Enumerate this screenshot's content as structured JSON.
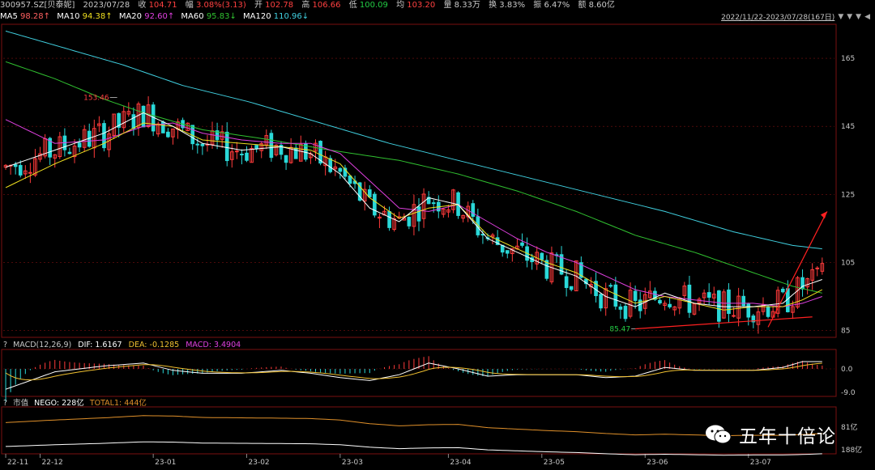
{
  "header": {
    "code": "300957.SZ[贝泰妮]",
    "date": "2023/07/28",
    "close_label": "收",
    "close": "104.71",
    "change_label": "幅",
    "change": "3.08%(3.13)",
    "open_label": "开",
    "open": "102.78",
    "high_label": "高",
    "high": "106.66",
    "low_label": "低",
    "low": "100.09",
    "avg_label": "均",
    "avg": "103.20",
    "volume_label": "量",
    "volume": "8.33万",
    "turnover_label": "换",
    "turnover": "3.83%",
    "amplitude_label": "振",
    "amplitude": "6.47%",
    "amount_label": "额",
    "amount": "8.60亿",
    "date_range": "2022/11/22-2023/07/28(167日)",
    "nav_left": "◀",
    "nav_right": "▼"
  },
  "ma_legend": {
    "ma5_label": "MA5",
    "ma5": "98.28↑",
    "ma10_label": "MA10",
    "ma10": "94.38↑",
    "ma20_label": "MA20",
    "ma20": "92.60↑",
    "ma60_label": "MA60",
    "ma60": "95.83↓",
    "ma120_label": "MA120",
    "ma120": "110.96↓"
  },
  "macd_legend": {
    "q": "?",
    "name": "MACD(12,26,9)",
    "dif_label": "DIF:",
    "dif": "1.6167",
    "dea_label": "DEA:",
    "dea": "-0.1285",
    "macd_label": "MACD:",
    "macd": "3.4904"
  },
  "nego_legend": {
    "q": "?",
    "name": "市值",
    "nego_label": "NEGO:",
    "nego": "228亿",
    "total_label": "TOTAL1:",
    "total": "444亿"
  },
  "colors": {
    "up": "#ff3b3b",
    "down": "#2ad8d8",
    "ma5": "#ffffff",
    "ma10": "#f0e020",
    "ma20": "#e040e0",
    "ma60": "#30c030",
    "ma120": "#40d0e0",
    "grid": "#7a1010",
    "total": "#e0902a",
    "nego": "#ffffff"
  },
  "chart_data": {
    "type": "candlestick",
    "y_ticks": [
      "165",
      "145",
      "125",
      "105",
      "85"
    ],
    "y_range": [
      83,
      175
    ],
    "macd_ticks": [
      "0.0",
      "-9.0"
    ],
    "nego_ticks": [
      "81亿",
      "188亿"
    ],
    "x_labels": [
      "22-11",
      "22-12",
      "23-01",
      "23-02",
      "23-03",
      "23-04",
      "23-05",
      "23-06",
      "23-07"
    ],
    "x_label_positions": [
      0,
      7,
      30,
      49,
      68,
      90,
      109,
      130,
      151
    ],
    "annotations": [
      {
        "text": "153.46",
        "index": 22,
        "value": 153.46,
        "type": "max"
      },
      {
        "text": "85.47",
        "index": 128,
        "value": 85.47,
        "type": "min"
      }
    ],
    "candle_count": 167,
    "ma5": [
      [
        0,
        133
      ],
      [
        10,
        138
      ],
      [
        20,
        143
      ],
      [
        28,
        149
      ],
      [
        34,
        145
      ],
      [
        40,
        140
      ],
      [
        48,
        138
      ],
      [
        56,
        139
      ],
      [
        62,
        137
      ],
      [
        68,
        131
      ],
      [
        74,
        121
      ],
      [
        80,
        117
      ],
      [
        86,
        124
      ],
      [
        92,
        122
      ],
      [
        98,
        112
      ],
      [
        104,
        108
      ],
      [
        110,
        104
      ],
      [
        116,
        101
      ],
      [
        122,
        95
      ],
      [
        128,
        92
      ],
      [
        134,
        96
      ],
      [
        140,
        93
      ],
      [
        146,
        92
      ],
      [
        152,
        92
      ],
      [
        158,
        93
      ],
      [
        162,
        98
      ],
      [
        166,
        100
      ]
    ],
    "ma10": [
      [
        0,
        127
      ],
      [
        10,
        134
      ],
      [
        20,
        140
      ],
      [
        28,
        146
      ],
      [
        34,
        145
      ],
      [
        40,
        141
      ],
      [
        48,
        140
      ],
      [
        56,
        139
      ],
      [
        62,
        138
      ],
      [
        68,
        134
      ],
      [
        74,
        124
      ],
      [
        80,
        118
      ],
      [
        86,
        121
      ],
      [
        92,
        122
      ],
      [
        98,
        113
      ],
      [
        104,
        109
      ],
      [
        110,
        105
      ],
      [
        116,
        102
      ],
      [
        122,
        97
      ],
      [
        128,
        93
      ],
      [
        134,
        95
      ],
      [
        140,
        93
      ],
      [
        146,
        91
      ],
      [
        152,
        92
      ],
      [
        158,
        92
      ],
      [
        162,
        94
      ],
      [
        166,
        97
      ]
    ],
    "ma20": [
      [
        0,
        147
      ],
      [
        10,
        140
      ],
      [
        20,
        141
      ],
      [
        28,
        145
      ],
      [
        34,
        146
      ],
      [
        40,
        143
      ],
      [
        48,
        141
      ],
      [
        56,
        140
      ],
      [
        62,
        140
      ],
      [
        68,
        137
      ],
      [
        74,
        129
      ],
      [
        80,
        121
      ],
      [
        86,
        120
      ],
      [
        92,
        122
      ],
      [
        98,
        117
      ],
      [
        104,
        112
      ],
      [
        110,
        108
      ],
      [
        116,
        105
      ],
      [
        122,
        101
      ],
      [
        128,
        97
      ],
      [
        134,
        95
      ],
      [
        140,
        94
      ],
      [
        146,
        93
      ],
      [
        152,
        93
      ],
      [
        158,
        92
      ],
      [
        162,
        93
      ],
      [
        166,
        95
      ]
    ],
    "ma60": [
      [
        0,
        164
      ],
      [
        10,
        159
      ],
      [
        20,
        153
      ],
      [
        28,
        149
      ],
      [
        40,
        144
      ],
      [
        54,
        141
      ],
      [
        66,
        138
      ],
      [
        80,
        135
      ],
      [
        92,
        131
      ],
      [
        104,
        126
      ],
      [
        116,
        120
      ],
      [
        128,
        113
      ],
      [
        140,
        108
      ],
      [
        152,
        102
      ],
      [
        160,
        98
      ],
      [
        166,
        96
      ]
    ],
    "ma120": [
      [
        0,
        173
      ],
      [
        12,
        168
      ],
      [
        24,
        163
      ],
      [
        36,
        157
      ],
      [
        50,
        152
      ],
      [
        64,
        146
      ],
      [
        78,
        140
      ],
      [
        92,
        135
      ],
      [
        106,
        130
      ],
      [
        120,
        125
      ],
      [
        134,
        120
      ],
      [
        148,
        114
      ],
      [
        160,
        110
      ],
      [
        166,
        109
      ]
    ],
    "candles_ohlc_sample": "Daily OHLC candles from 2022/11/22 to 2023/07/28; last close 104.71, high 106.66, low 100.09, open 102.78",
    "arrow_target": [
      167,
      120
    ]
  }
}
